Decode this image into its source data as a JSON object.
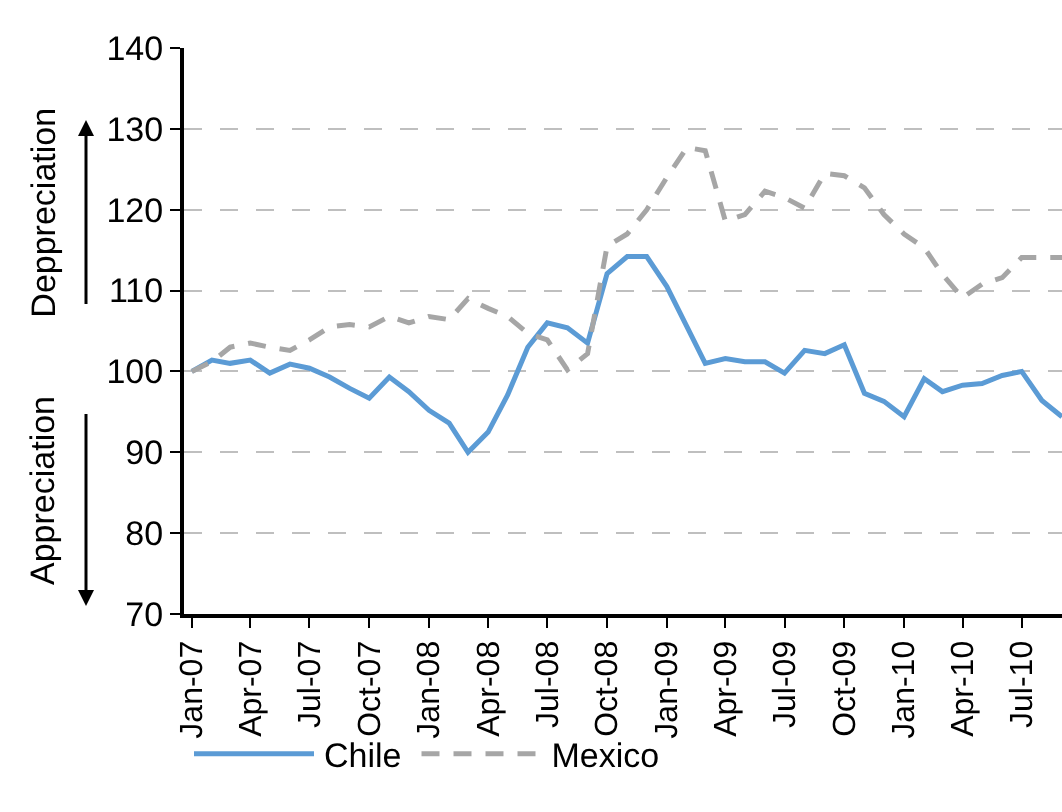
{
  "chart_data": {
    "type": "line",
    "x": [
      "2007-01",
      "2007-02",
      "2007-03",
      "2007-04",
      "2007-05",
      "2007-06",
      "2007-07",
      "2007-08",
      "2007-09",
      "2007-10",
      "2007-11",
      "2007-12",
      "2008-01",
      "2008-02",
      "2008-03",
      "2008-04",
      "2008-05",
      "2008-06",
      "2008-07",
      "2008-08",
      "2008-09",
      "2008-10",
      "2008-11",
      "2008-12",
      "2009-01",
      "2009-02",
      "2009-03",
      "2009-04",
      "2009-05",
      "2009-06",
      "2009-07",
      "2009-08",
      "2009-09",
      "2009-10",
      "2009-11",
      "2009-12",
      "2010-01",
      "2010-02",
      "2010-03",
      "2010-04",
      "2010-05",
      "2010-06",
      "2010-07",
      "2010-08",
      "2010-09"
    ],
    "series": [
      {
        "name": "Chile",
        "color": "#5b9bd5",
        "line_style": "solid",
        "values": [
          100,
          101.4,
          101,
          101.4,
          99.8,
          100.9,
          100.4,
          99.3,
          97.9,
          96.7,
          99.3,
          97.5,
          95.2,
          93.6,
          90,
          92.5,
          97.1,
          103,
          106,
          105.4,
          103.5,
          112.1,
          114.2,
          114.2,
          110.5,
          105.5,
          101,
          101.6,
          101.2,
          101.2,
          99.8,
          102.6,
          102.2,
          103.3,
          97.3,
          96.3,
          94.4,
          99.1,
          97.5,
          98.3,
          98.5,
          99.5,
          100,
          96.4,
          94.4
        ]
      },
      {
        "name": "Mexico",
        "color": "#a6a6a6",
        "line_style": "dashed",
        "values": [
          100,
          101.2,
          103,
          103.5,
          103,
          102.6,
          103.9,
          105.5,
          105.8,
          105.5,
          106.8,
          106,
          106.8,
          106.4,
          109,
          107.8,
          106.8,
          104.7,
          103.9,
          100.2,
          102.2,
          115.5,
          117,
          120,
          124,
          127.7,
          127.3,
          118.6,
          119.4,
          122.3,
          121.5,
          120.2,
          124.5,
          124.2,
          122.7,
          119.4,
          117,
          115.3,
          112,
          109.1,
          110.8,
          111.6,
          114.1,
          114.1,
          114.1
        ]
      }
    ],
    "xlim": [
      "2006-12-20",
      "2010-09-01"
    ],
    "xticks": [
      {
        "value": "2007-01",
        "label": "Jan-07"
      },
      {
        "value": "2007-04",
        "label": "Apr-07"
      },
      {
        "value": "2007-07",
        "label": "Jul-07"
      },
      {
        "value": "2007-10",
        "label": "Oct-07"
      },
      {
        "value": "2008-01",
        "label": "Jan-08"
      },
      {
        "value": "2008-04",
        "label": "Apr-08"
      },
      {
        "value": "2008-07",
        "label": "Jul-08"
      },
      {
        "value": "2008-10",
        "label": "Oct-08"
      },
      {
        "value": "2009-01",
        "label": "Jan-09"
      },
      {
        "value": "2009-04",
        "label": "Apr-09"
      },
      {
        "value": "2009-07",
        "label": "Jul-09"
      },
      {
        "value": "2009-10",
        "label": "Oct-09"
      },
      {
        "value": "2010-01",
        "label": "Jan-10"
      },
      {
        "value": "2010-04",
        "label": "Apr-10"
      },
      {
        "value": "2010-07",
        "label": "Jul-10"
      }
    ],
    "ylim": [
      70,
      140
    ],
    "yticks": [
      70,
      80,
      90,
      100,
      110,
      120,
      130,
      140
    ],
    "grid": "y",
    "legend": "bottom",
    "marker": "none",
    "annotations": [
      "Deppreciation",
      "Appreciation"
    ]
  }
}
